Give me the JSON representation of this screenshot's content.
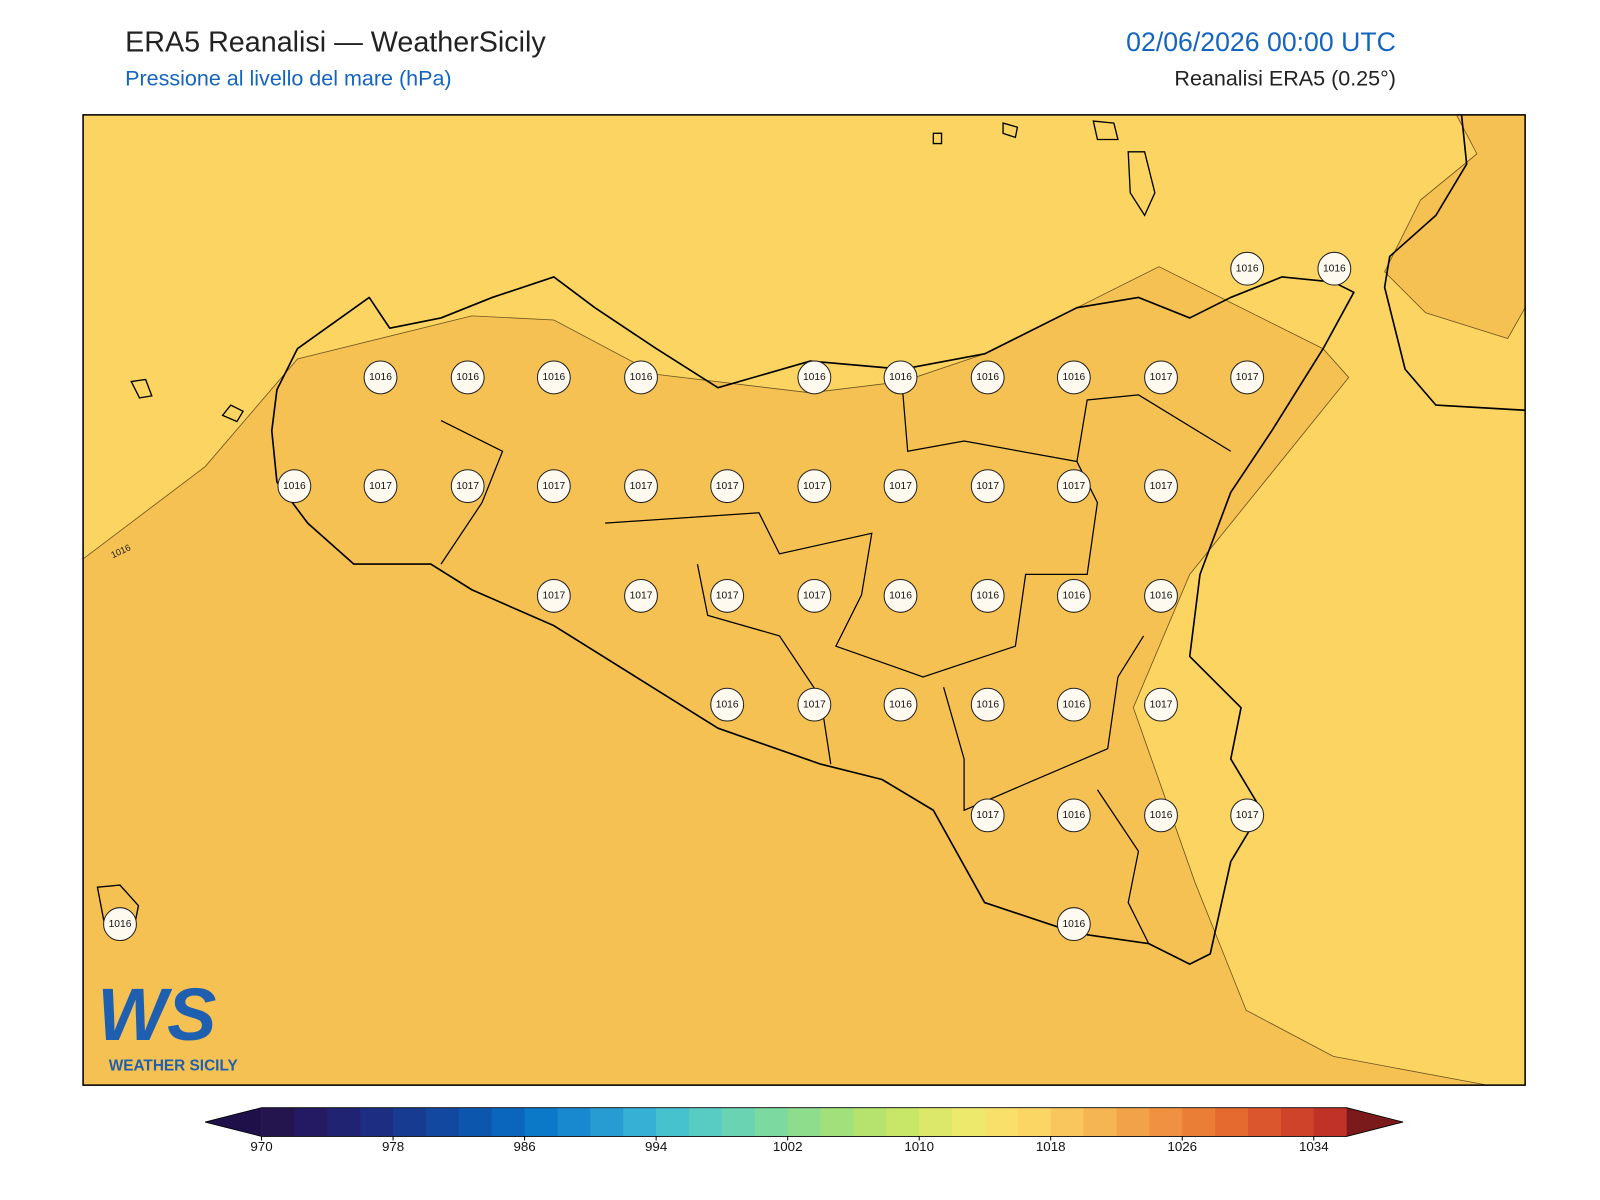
{
  "header": {
    "title": "ERA5 Reanalisi — WeatherSicily",
    "subtitle": "Pressione al livello del mare (hPa)",
    "datetime": "02/06/2026 00:00 UTC",
    "source": "Reanalisi ERA5 (0.25°)"
  },
  "map": {
    "sea_color": "#fbd462",
    "inner_color": "#f6c153",
    "contour_label": "1016",
    "stations": [
      1016,
      1016,
      1016,
      1016,
      1016,
      1016,
      1016,
      1016,
      1017,
      1017,
      1016,
      1016,
      1016,
      1017,
      1017,
      1017,
      1017,
      1017,
      1017,
      1017,
      1017,
      1017,
      1017,
      1017,
      1017,
      1017,
      1017,
      1016,
      1016,
      1016,
      1016,
      1016,
      1017,
      1016,
      1016,
      1016,
      1017,
      1017,
      1016,
      1016,
      1017,
      1016,
      1016
    ]
  },
  "colorbar": {
    "range": [
      970,
      1036
    ],
    "ticks": [
      970,
      978,
      986,
      994,
      1002,
      1010,
      1018,
      1026,
      1034
    ],
    "colors": [
      "#24154f",
      "#231a63",
      "#1f2372",
      "#1c2d82",
      "#173b90",
      "#12489f",
      "#0d56ae",
      "#0a66bd",
      "#0c78c8",
      "#1889cf",
      "#279cd3",
      "#36b0d5",
      "#46c2cf",
      "#58cbc2",
      "#6ad3b2",
      "#7cd9a0",
      "#8edd8d",
      "#a1e07b",
      "#b5e36e",
      "#c8e668",
      "#dbe86a",
      "#ede96c",
      "#f9e06a",
      "#fbd664",
      "#f8c65c",
      "#f5b553",
      "#f2a34a",
      "#ef9140",
      "#eb7e37",
      "#e56a30",
      "#dc562d",
      "#d0432b",
      "#c03128"
    ],
    "under_color": "#201049",
    "over_color": "#7a1a1a"
  },
  "logo": {
    "letters": "WS",
    "text": "WEATHER SICILY"
  }
}
